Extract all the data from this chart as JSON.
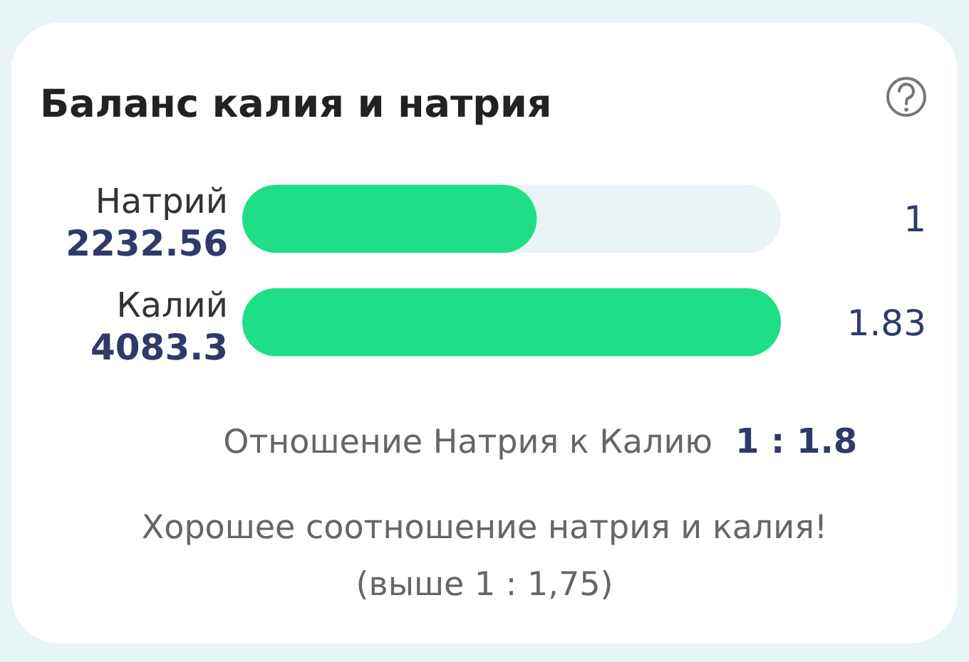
{
  "chart_data": {
    "type": "bar",
    "orientation": "horizontal",
    "title": "Баланс калия и натрия",
    "categories": [
      "Натрий",
      "Калий"
    ],
    "values": [
      2232.56,
      4083.3
    ],
    "color": "#1edf85",
    "xlim": [
      0,
      4083.3
    ],
    "data_labels": true,
    "tick_labels": "y",
    "annotations": [
      "1",
      "1.83",
      "Отношение Натрия к Калию",
      "1 : 1.8",
      "Хорошее соотношение натрия и калия!",
      "(выше 1 : 1,75)"
    ]
  }
}
